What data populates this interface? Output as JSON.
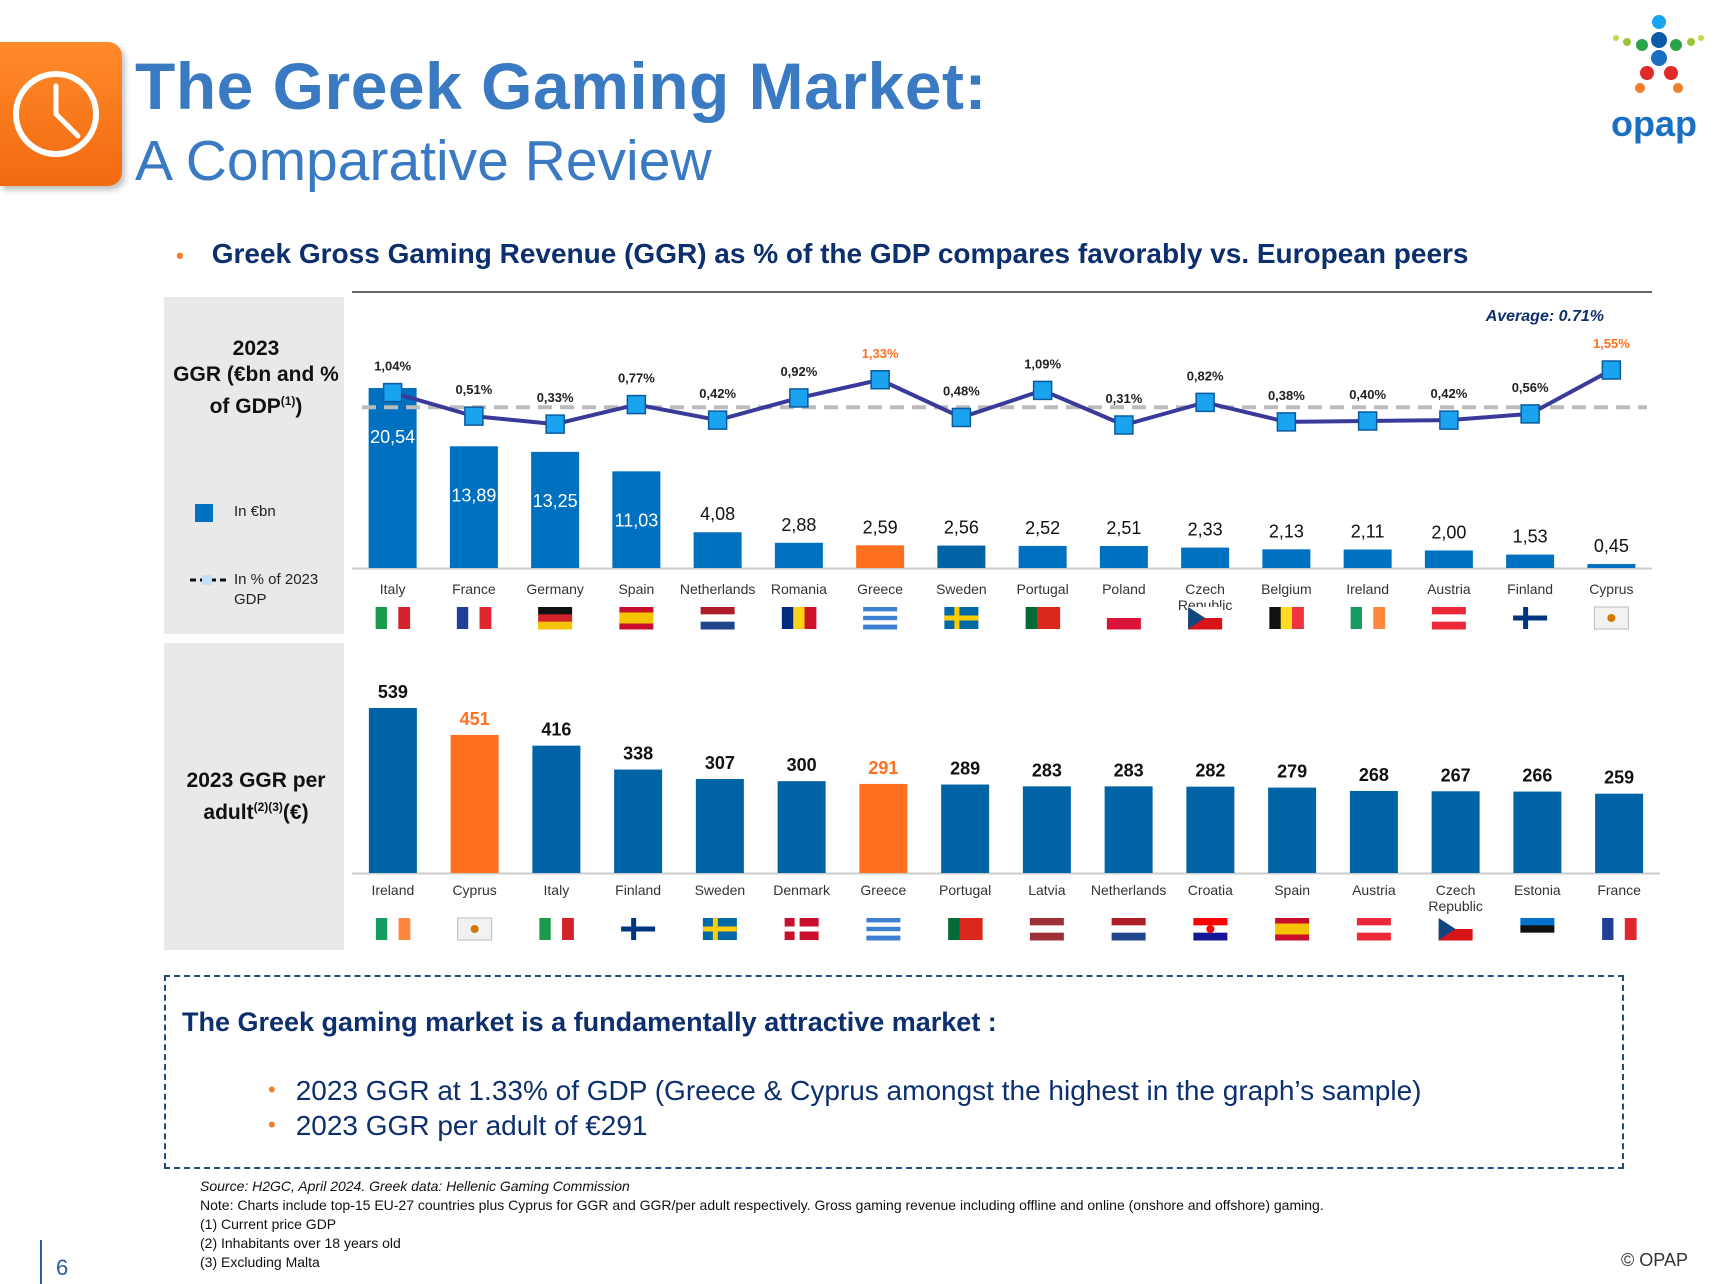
{
  "header": {
    "title_line1": "The Greek Gaming Market:",
    "title_line2": "A Comparative Review",
    "logo_text": "opap"
  },
  "headline": "Greek Gross Gaming Revenue (GGR) as % of the GDP compares favorably vs. European peers",
  "panel1": {
    "title_line1": "2023",
    "title_line2": "GGR (€bn and %",
    "title_line3": "of GDP",
    "title_sup": "(1)",
    "legend_bars": "In €bn",
    "legend_line": "In % of 2023 GDP"
  },
  "panel2": {
    "title_line1": "2023 GGR per",
    "title_line2": "adult",
    "title_sup": "(2)(3)",
    "title_suffix": "(€)"
  },
  "colors": {
    "bar_blue": "#0070c0",
    "bar_blue_dark": "#0063a6",
    "highlight": "#ff7020",
    "line": "#3a3a9a",
    "marker": "#1aa3ee",
    "average_line": "#bbbbbb"
  },
  "chart_data": [
    {
      "type": "bar",
      "categories": [
        "Italy",
        "France",
        "Germany",
        "Spain",
        "Netherlands",
        "Romania",
        "Greece",
        "Sweden",
        "Portugal",
        "Poland",
        "Czech Republic",
        "Belgium",
        "Ireland",
        "Austria",
        "Finland",
        "Cyprus"
      ],
      "series": [
        {
          "name": "In €bn",
          "values": [
            20.54,
            13.89,
            13.25,
            11.03,
            4.08,
            2.88,
            2.59,
            2.56,
            2.52,
            2.51,
            2.33,
            2.13,
            2.11,
            2.0,
            1.53,
            0.45
          ],
          "labels": [
            "20,54",
            "13,89",
            "13,25",
            "11,03",
            "4,08",
            "2,88",
            "2,59",
            "2,56",
            "2,52",
            "2,51",
            "2,33",
            "2,13",
            "2,11",
            "2,00",
            "1,53",
            "0,45"
          ]
        },
        {
          "name": "In % of 2023 GDP",
          "type": "line",
          "values": [
            1.04,
            0.51,
            0.33,
            0.77,
            0.42,
            0.92,
            1.33,
            0.48,
            1.09,
            0.31,
            0.82,
            0.38,
            0.4,
            0.42,
            0.56,
            1.55
          ],
          "labels": [
            "1,04%",
            "0,51%",
            "0,33%",
            "0,77%",
            "0,42%",
            "0,92%",
            "1,33%",
            "0,48%",
            "1,09%",
            "0,31%",
            "0,82%",
            "0,38%",
            "0,40%",
            "0,42%",
            "0,56%",
            "1,55%"
          ]
        }
      ],
      "highlight_categories": [
        "Greece"
      ],
      "average_label": "Average: 0.71%",
      "average_value": 0.71
    },
    {
      "type": "bar",
      "categories": [
        "Ireland",
        "Cyprus",
        "Italy",
        "Finland",
        "Sweden",
        "Denmark",
        "Greece",
        "Portugal",
        "Latvia",
        "Netherlands",
        "Croatia",
        "Spain",
        "Austria",
        "Czech Republic",
        "Estonia",
        "France"
      ],
      "values": [
        539,
        451,
        416,
        338,
        307,
        300,
        291,
        289,
        283,
        283,
        282,
        279,
        268,
        267,
        266,
        259
      ],
      "highlight_categories": [
        "Cyprus",
        "Greece"
      ]
    }
  ],
  "flags": {
    "panel1": [
      "italy-flag",
      "france-flag",
      "germany-flag",
      "spain-flag",
      "netherlands-flag",
      "romania-flag",
      "greece-flag",
      "sweden-flag",
      "portugal-flag",
      "poland-flag",
      "czech-flag",
      "belgium-flag",
      "ireland-flag",
      "austria-flag",
      "finland-flag",
      "cyprus-flag"
    ],
    "panel2": [
      "ireland-flag",
      "cyprus-flag",
      "italy-flag",
      "finland-flag",
      "sweden-flag",
      "denmark-flag",
      "greece-flag",
      "portugal-flag",
      "latvia-flag",
      "netherlands-flag",
      "croatia-flag",
      "spain-flag",
      "austria-flag",
      "czech-flag",
      "estonia-flag",
      "france-flag"
    ]
  },
  "box": {
    "heading": "The Greek gaming market is a fundamentally attractive market :",
    "items": [
      "2023 GGR at 1.33% of GDP (Greece & Cyprus amongst the highest in the graph’s sample)",
      "2023 GGR per adult of €291"
    ]
  },
  "footnotes": {
    "source": "Source: H2GC, April 2024. Greek data: Hellenic Gaming Commission",
    "note": "Note: Charts include top-15 EU-27 countries plus Cyprus for GGR and GGR/per adult respectively. Gross gaming revenue including offline and online (onshore and offshore) gaming.",
    "n1": "(1)  Current price GDP",
    "n2": "(2)  Inhabitants over 18 years old",
    "n3": "(3)  Excluding Malta"
  },
  "page_number": "6",
  "copyright": "© OPAP"
}
